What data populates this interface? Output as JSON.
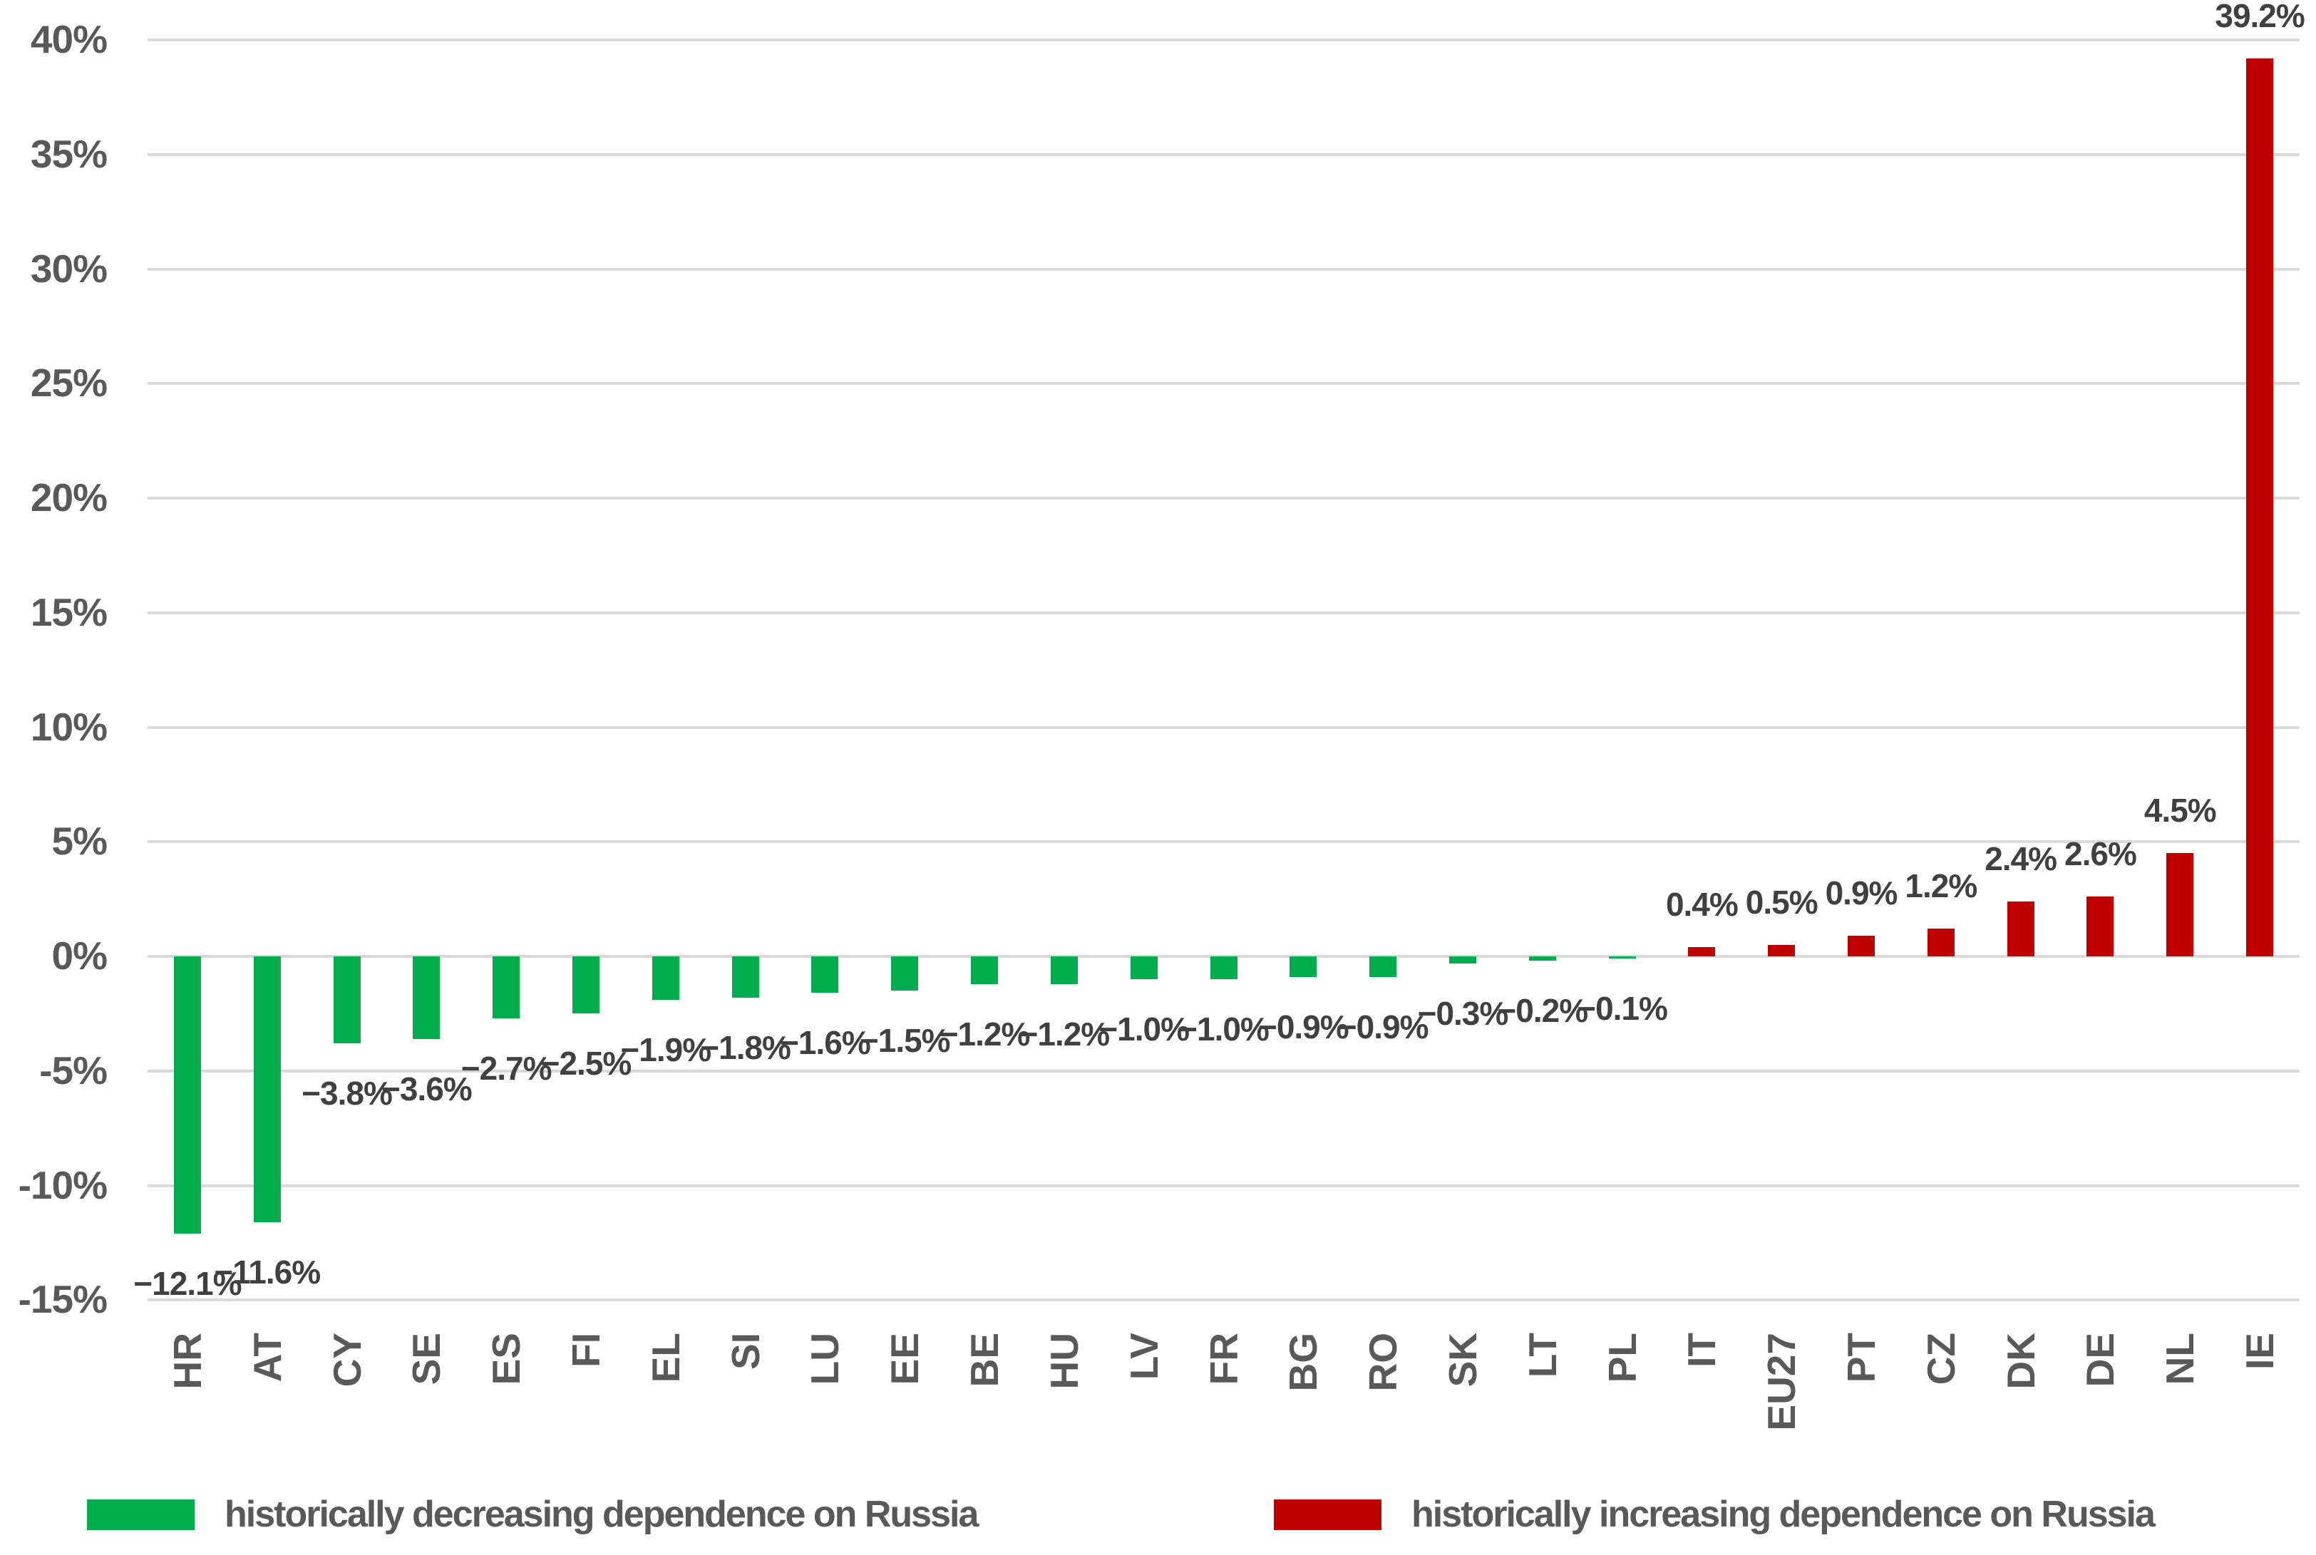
{
  "chart_data": {
    "type": "bar",
    "categories": [
      "HR",
      "AT",
      "CY",
      "SE",
      "ES",
      "FI",
      "EL",
      "SI",
      "LU",
      "EE",
      "BE",
      "HU",
      "LV",
      "FR",
      "BG",
      "RO",
      "SK",
      "LT",
      "PL",
      "IT",
      "EU27",
      "PT",
      "CZ",
      "DK",
      "DE",
      "NL",
      "IE"
    ],
    "values": [
      -12.1,
      -11.6,
      -3.8,
      -3.6,
      -2.7,
      -2.5,
      -1.9,
      -1.8,
      -1.6,
      -1.5,
      -1.2,
      -1.2,
      -1.0,
      -1.0,
      -0.9,
      -0.9,
      -0.3,
      -0.2,
      -0.1,
      0.4,
      0.5,
      0.9,
      1.2,
      2.4,
      2.6,
      4.5,
      39.2
    ],
    "data_labels": [
      "−12.1%",
      "−11.6%",
      "−3.8%",
      "−3.6%",
      "−2.7%",
      "−2.5%",
      "−1.9%",
      "−1.8%",
      "−1.6%",
      "−1.5%",
      "−1.2%",
      "−1.2%",
      "−1.0%",
      "−1.0%",
      "−0.9%",
      "−0.9%",
      "−0.3%",
      "−0.2%",
      "−0.1%",
      "0.4%",
      "0.5%",
      "0.9%",
      "1.2%",
      "2.4%",
      "2.6%",
      "4.5%",
      "39.2%"
    ],
    "groups": [
      "decreasing",
      "decreasing",
      "decreasing",
      "decreasing",
      "decreasing",
      "decreasing",
      "decreasing",
      "decreasing",
      "decreasing",
      "decreasing",
      "decreasing",
      "decreasing",
      "decreasing",
      "decreasing",
      "decreasing",
      "decreasing",
      "decreasing",
      "decreasing",
      "decreasing",
      "increasing",
      "increasing",
      "increasing",
      "increasing",
      "increasing",
      "increasing",
      "increasing",
      "increasing"
    ],
    "group_colors": {
      "decreasing": "#00AC4E",
      "increasing": "#C00000"
    },
    "title": "",
    "xlabel": "",
    "ylabel": "",
    "ylim": [
      -15,
      40
    ],
    "ytick_step": 5,
    "yticks": [
      {
        "value": 40,
        "label": "40%"
      },
      {
        "value": 35,
        "label": "35%"
      },
      {
        "value": 30,
        "label": "30%"
      },
      {
        "value": 25,
        "label": "25%"
      },
      {
        "value": 20,
        "label": "20%"
      },
      {
        "value": 15,
        "label": "15%"
      },
      {
        "value": 10,
        "label": "10%"
      },
      {
        "value": 5,
        "label": "5%"
      },
      {
        "value": 0,
        "label": "0%"
      },
      {
        "value": -5,
        "label": "-5%"
      },
      {
        "value": -10,
        "label": "-10%"
      },
      {
        "value": -15,
        "label": "-15%"
      }
    ],
    "grid": true,
    "grid_color": "#D9D9D9",
    "axis_text_color": "#595959",
    "data_label_color": "#404040",
    "legend_position": "bottom"
  },
  "legend": {
    "items": [
      {
        "label": "historically decreasing dependence on Russia",
        "color": "#00AC4E"
      },
      {
        "label": "historically increasing dependence on Russia",
        "color": "#C00000"
      }
    ]
  }
}
